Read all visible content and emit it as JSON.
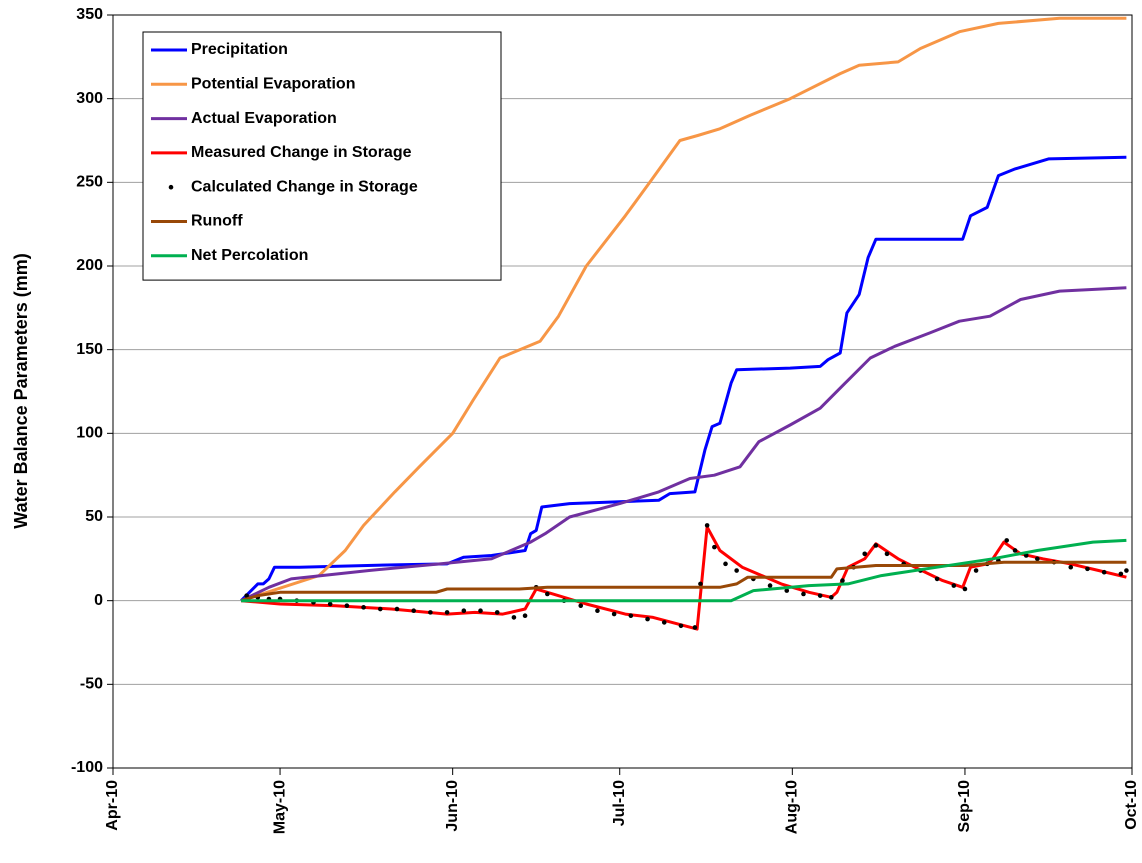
{
  "chart_data": {
    "type": "line",
    "y_label": "Water Balance Parameters (mm)",
    "xlim": [
      0,
      183
    ],
    "xticks": [
      {
        "value": 0,
        "label": "Apr-10"
      },
      {
        "value": 30,
        "label": "May-10"
      },
      {
        "value": 61,
        "label": "Jun-10"
      },
      {
        "value": 91,
        "label": "Jul-10"
      },
      {
        "value": 122,
        "label": "Aug-10"
      },
      {
        "value": 153,
        "label": "Sep-10"
      },
      {
        "value": 183,
        "label": "Oct-10"
      }
    ],
    "ylim": [
      -100,
      350
    ],
    "yticks": [
      -100,
      -50,
      0,
      50,
      100,
      150,
      200,
      250,
      300,
      350
    ],
    "grid": true,
    "legend": "upper-left",
    "series": [
      {
        "name": "Precipitation",
        "color": "#0000ff",
        "mode": "line",
        "x": [
          23,
          26,
          27,
          28,
          29,
          33.5,
          51.5,
          60,
          63,
          68,
          74,
          75,
          76,
          77,
          82,
          98,
          100,
          104.5,
          106.3,
          107.6,
          109,
          111,
          112,
          121.6,
          127,
          128.4,
          130.6,
          131.8,
          134,
          135.6,
          137,
          152.6,
          154,
          157,
          159,
          162,
          168,
          182
        ],
        "values": [
          0,
          10,
          10,
          13,
          20,
          20,
          21.5,
          22,
          26,
          27,
          30,
          40,
          42,
          56,
          58,
          60,
          64,
          65,
          90,
          104,
          106,
          130,
          138,
          139,
          140,
          144,
          148,
          172,
          183,
          205,
          216,
          216,
          230,
          235,
          254,
          258,
          264,
          265
        ]
      },
      {
        "name": "Potential Evaporation",
        "color": "#f79646",
        "mode": "line",
        "x": [
          23,
          37,
          41.7,
          45,
          50.6,
          55,
          61,
          64.7,
          69.5,
          76.7,
          80,
          85,
          92,
          96.4,
          101.8,
          105,
          109,
          114.4,
          121.6,
          130.6,
          134,
          141,
          145,
          152,
          159,
          170,
          182
        ],
        "values": [
          0,
          15,
          30,
          45,
          65,
          80,
          100,
          120,
          145,
          155,
          170,
          200,
          230,
          250,
          275,
          278,
          282,
          290,
          300,
          315,
          320,
          322,
          330,
          340,
          345,
          348,
          348
        ]
      },
      {
        "name": "Actual Evaporation",
        "color": "#7030a0",
        "mode": "line",
        "x": [
          23,
          28,
          32,
          46,
          58.7,
          68,
          75,
          77.6,
          82,
          91,
          98,
          103.6,
          108,
          112.6,
          116,
          121.6,
          127,
          131.5,
          136,
          140.4,
          146.7,
          152,
          157.5,
          163,
          170,
          182
        ],
        "values": [
          0,
          8,
          13,
          18,
          22,
          25,
          35,
          40,
          50,
          58,
          65,
          73,
          75,
          80,
          95,
          105,
          115,
          130,
          145,
          152,
          160,
          167,
          170,
          180,
          185,
          187
        ]
      },
      {
        "name": "Measured Change in Storage",
        "color": "#ff0000",
        "mode": "line",
        "x": [
          23,
          30,
          40,
          50,
          60,
          65,
          70,
          74,
          76,
          78,
          85,
          92,
          97,
          104.9,
          106.7,
          109,
          113,
          120,
          125,
          129,
          130,
          132,
          135,
          137,
          141,
          144,
          149,
          152.6,
          154,
          157,
          158,
          160,
          163,
          167,
          172,
          177,
          182
        ],
        "values": [
          0,
          -2,
          -3,
          -5,
          -8,
          -7,
          -8,
          -5,
          7,
          5,
          -2,
          -8,
          -10,
          -17,
          44,
          30,
          20,
          10,
          5,
          2,
          5,
          20,
          25,
          34,
          25,
          20,
          12,
          8,
          20,
          22,
          25,
          35,
          28,
          25,
          22,
          18,
          14
        ]
      },
      {
        "name": "Calculated Change in Storage",
        "color": "#000000",
        "mode": "markers",
        "x": [
          24,
          26,
          28,
          30,
          33,
          36,
          39,
          42,
          45,
          48,
          51,
          54,
          57,
          60,
          63,
          66,
          69,
          72,
          74,
          76,
          78,
          81,
          84,
          87,
          90,
          93,
          96,
          99,
          102,
          104.5,
          105.5,
          106.7,
          108,
          110,
          112,
          115,
          118,
          121,
          124,
          127,
          129,
          131,
          133,
          135,
          137,
          139,
          142,
          145,
          148,
          151,
          153,
          155,
          157,
          159,
          160.5,
          162,
          164,
          166,
          169,
          172,
          175,
          178,
          181,
          182
        ],
        "values": [
          3,
          2,
          1,
          1,
          0,
          -1,
          -2,
          -3,
          -4,
          -5,
          -5,
          -6,
          -7,
          -7,
          -6,
          -6,
          -7,
          -10,
          -9,
          8,
          4,
          0,
          -3,
          -6,
          -8,
          -9,
          -11,
          -13,
          -15,
          -16,
          10,
          45,
          32,
          22,
          18,
          13,
          9,
          6,
          4,
          3,
          2,
          12,
          20,
          28,
          33,
          28,
          22,
          18,
          13,
          9,
          7,
          18,
          22,
          24,
          36,
          30,
          27,
          25,
          23,
          20,
          19,
          17,
          16,
          18
        ]
      },
      {
        "name": "Runoff",
        "color": "#984807",
        "mode": "line",
        "x": [
          23,
          26,
          30,
          58,
          60,
          73,
          78,
          109,
          112,
          114,
          129,
          130,
          137,
          153,
          160,
          182
        ],
        "values": [
          0,
          3,
          5,
          5,
          7,
          7,
          8,
          8,
          10,
          14,
          14,
          19,
          21,
          21,
          23,
          23
        ]
      },
      {
        "name": "Net Percolation",
        "color": "#00b050",
        "mode": "line",
        "x": [
          23,
          111,
          115,
          125,
          132,
          138,
          148,
          158,
          166,
          176,
          182
        ],
        "values": [
          0,
          0,
          6,
          9,
          10,
          15,
          20,
          25,
          30,
          35,
          36
        ]
      }
    ]
  }
}
